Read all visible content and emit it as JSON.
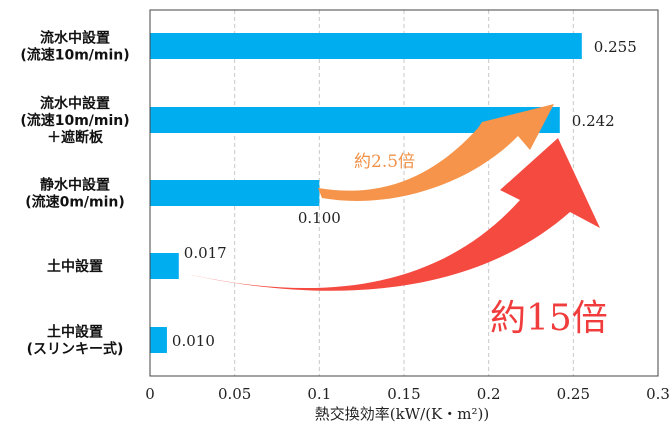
{
  "chart_data": {
    "type": "bar",
    "orientation": "horizontal",
    "categories": [
      [
        "流水中設置",
        "(流速10m/min)"
      ],
      [
        "流水中設置",
        "(流速10m/min)",
        "＋遮断板"
      ],
      [
        "静水中設置",
        "(流速0m/min)"
      ],
      [
        "土中設置"
      ],
      [
        "土中設置",
        "(スリンキー式)"
      ]
    ],
    "values": [
      0.255,
      0.242,
      0.1,
      0.017,
      0.01
    ],
    "value_labels": [
      "0.255",
      "0.242",
      "0.100",
      "0.017",
      "0.010"
    ],
    "xlabel": "熱交換効率(kW/(K・m²))",
    "xlim": [
      0,
      0.3
    ],
    "xticks": [
      0,
      0.05,
      0.1,
      0.15,
      0.2,
      0.25,
      0.3
    ],
    "xtick_labels": [
      "0",
      "0.05",
      "0.1",
      "0.15",
      "0.2",
      "0.25",
      "0.3"
    ],
    "grid": "vertical dashed",
    "bar_color": "#00adef",
    "annotations": [
      {
        "text": "約2.5倍",
        "color": "#f0924a",
        "from": "静水中設置",
        "to": "流水中設置 ＋遮断板"
      },
      {
        "text": "約15倍",
        "color": "#f03c3c",
        "from": "土中設置",
        "to": "流水中設置 ＋遮断板"
      }
    ]
  }
}
